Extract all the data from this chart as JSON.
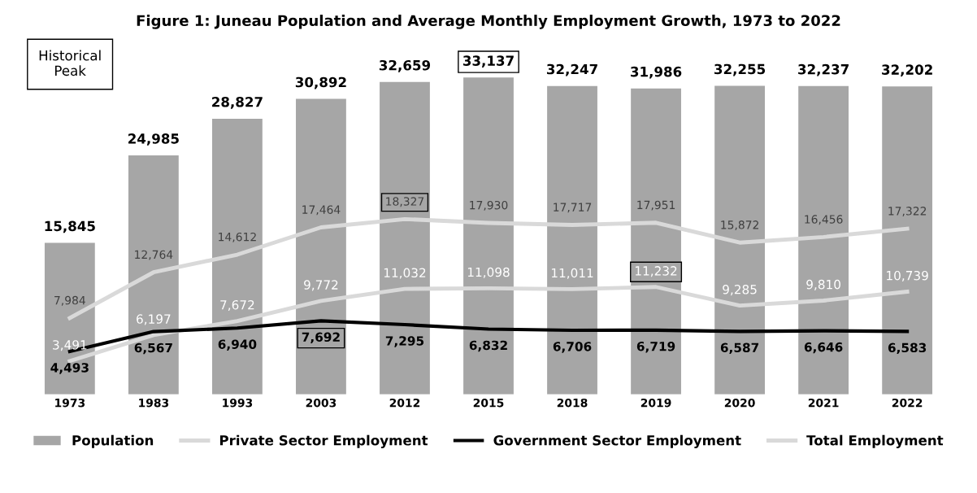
{
  "chart_data": {
    "type": "bar",
    "title": "Figure 1: Juneau Population and Average Monthly Employment Growth, 1973 to 2022",
    "categories": [
      "1973",
      "1983",
      "1993",
      "2003",
      "2012",
      "2015",
      "2018",
      "2019",
      "2020",
      "2021",
      "2022"
    ],
    "series": [
      {
        "name": "Population",
        "color": "#a6a6a6",
        "values": [
          15845,
          24985,
          28827,
          30892,
          32659,
          33137,
          32247,
          31986,
          32255,
          32237,
          32202
        ],
        "value_labels": [
          "15,845",
          "24,985",
          "28,827",
          "30,892",
          "32,659",
          "33,137",
          "32,247",
          "31,986",
          "32,255",
          "32,237",
          "32,202"
        ]
      },
      {
        "name": "Private Sector Employment",
        "type": "line",
        "color": "#d9d9d9",
        "values": [
          3491,
          6197,
          7672,
          9772,
          11032,
          11098,
          11011,
          11232,
          9285,
          9810,
          10739
        ],
        "value_labels": [
          "3,491",
          "6,197",
          "7,672",
          "9,772",
          "11,032",
          "11,098",
          "11,011",
          "11,232",
          "9,285",
          "9,810",
          "10,739"
        ]
      },
      {
        "name": "Government Sector Employment",
        "type": "line",
        "color": "#000000",
        "values": [
          4493,
          6567,
          6940,
          7692,
          7295,
          6832,
          6706,
          6719,
          6587,
          6646,
          6583
        ],
        "value_labels": [
          "4,493",
          "6,567",
          "6,940",
          "7,692",
          "7,295",
          "6,832",
          "6,706",
          "6,719",
          "6,587",
          "6,646",
          "6,583"
        ]
      },
      {
        "name": "Total Employment",
        "type": "line",
        "color": "#d9d9d9",
        "values": [
          7984,
          12764,
          14612,
          17464,
          18327,
          17930,
          17717,
          17951,
          15872,
          16456,
          17322
        ],
        "value_labels": [
          "7,984",
          "12,764",
          "14,612",
          "17,464",
          "18,327",
          "17,930",
          "17,717",
          "17,951",
          "15,872",
          "16,456",
          "17,322"
        ]
      }
    ],
    "annotations": [
      "Historical\nPeak"
    ],
    "legend": "bottom",
    "tick_labels": "x"
  }
}
